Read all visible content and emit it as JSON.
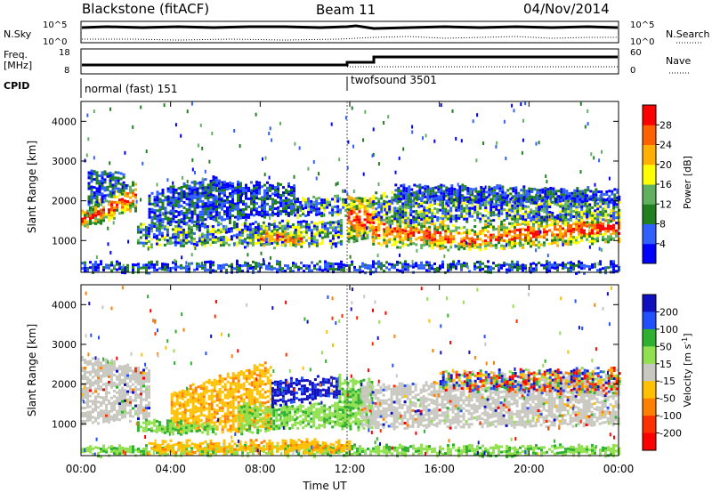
{
  "header": {
    "station": "Blackstone (fitACF)",
    "beam": "Beam 11",
    "date": "04/Nov/2014"
  },
  "colors": {
    "power_scale": [
      "#0000ff",
      "#3060ff",
      "#208020",
      "#60b060",
      "#ffff00",
      "#ffb000",
      "#ff6000",
      "#ff0000"
    ],
    "velocity_scale": [
      "#1010c0",
      "#2050ff",
      "#30b030",
      "#90e050",
      "#c8c8c0",
      "#ffc000",
      "#ff8000",
      "#ff3000",
      "#ff0000"
    ],
    "ground_scatter": "#c8c8c0"
  },
  "noise_panel": {
    "left_label": "N.Sky",
    "right_label": "N.Search",
    "left_ticks": [
      "10^5",
      "10^0"
    ],
    "right_ticks": [
      "10^5",
      "10^0"
    ]
  },
  "freq_panel": {
    "left_label_1": "Freq.",
    "left_label_2": "[MHz]",
    "left_ticks": [
      "18",
      "8"
    ],
    "right_label": "Nave",
    "right_ticks": [
      "60",
      "0"
    ]
  },
  "cpid_panel": {
    "label": "CPID",
    "segments": [
      {
        "name": "normal (fast) 151",
        "start": "00:00",
        "end": "12:00"
      },
      {
        "name": "twofsound 3501",
        "start": "12:00",
        "end": "00:00"
      }
    ]
  },
  "chart_data": [
    {
      "type": "heatmap",
      "panel": "power",
      "xlabel": "",
      "ylabel": "Slant Range [km]",
      "x_ticks": [
        "00:00",
        "04:00",
        "08:00",
        "12:00",
        "16:00",
        "20:00",
        "00:00"
      ],
      "y_ticks": [
        "1000",
        "2000",
        "3000",
        "4000"
      ],
      "ylim": [
        200,
        4500
      ],
      "colorbar": {
        "label": "Power [dB]",
        "ticks": [
          "4",
          "8",
          "12",
          "16",
          "20",
          "24",
          "28"
        ],
        "range": [
          0,
          32
        ]
      }
    },
    {
      "type": "heatmap",
      "panel": "velocity",
      "xlabel": "Time UT",
      "ylabel": "Slant Range [km]",
      "x_ticks": [
        "00:00",
        "04:00",
        "08:00",
        "12:00",
        "16:00",
        "20:00",
        "00:00"
      ],
      "y_ticks": [
        "1000",
        "2000",
        "3000",
        "4000"
      ],
      "ylim": [
        200,
        4500
      ],
      "colorbar": {
        "label": "Velocity [m s^-1]",
        "ticks": [
          "200",
          "100",
          "50",
          "15",
          "-15",
          "-50",
          "-100",
          "-200"
        ]
      }
    }
  ]
}
